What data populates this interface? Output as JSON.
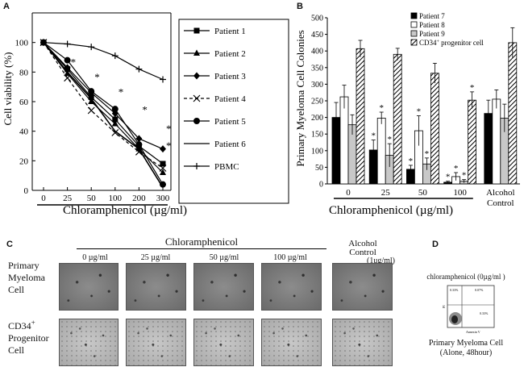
{
  "panel_labels": {
    "a": "A",
    "b": "B",
    "c": "C",
    "d": "D"
  },
  "chart_data": [
    {
      "type": "line",
      "title": "",
      "xlabel": "Chloramphenicol (µg/ml)",
      "ylabel": "Cell viability (%)",
      "categories": [
        "0",
        "25",
        "50",
        "100",
        "200",
        "300"
      ],
      "ylim": [
        0,
        120
      ],
      "yticks": [
        "0",
        "20",
        "40",
        "60",
        "80",
        "100"
      ],
      "significance": "*",
      "series": [
        {
          "name": "Patient 1",
          "marker": "square",
          "values": [
            100,
            82,
            63,
            48,
            30,
            18
          ]
        },
        {
          "name": "Patient 2",
          "marker": "triangle",
          "values": [
            100,
            79,
            60,
            45,
            28,
            12
          ]
        },
        {
          "name": "Patient 3",
          "marker": "diamond",
          "values": [
            100,
            83,
            66,
            52,
            35,
            28
          ]
        },
        {
          "name": "Patient 4",
          "marker": "x",
          "values": [
            100,
            76,
            54,
            39,
            26,
            15
          ]
        },
        {
          "name": "Patient 5",
          "marker": "circle",
          "values": [
            100,
            88,
            67,
            55,
            31,
            4
          ]
        },
        {
          "name": "Patient 6",
          "marker": "none",
          "values": [
            100,
            80,
            62,
            40,
            28,
            2
          ]
        },
        {
          "name": "PBMC",
          "marker": "plus",
          "values": [
            100,
            99,
            97,
            91,
            82,
            75
          ]
        }
      ]
    },
    {
      "type": "bar",
      "xlabel": "Chloramphenicol (µg/ml)",
      "ylabel": "Primary Myeloma Cell Colonies",
      "categories": [
        "0",
        "25",
        "50",
        "100",
        "Alcohol Control"
      ],
      "ylim": [
        0,
        500
      ],
      "yticks": [
        "0",
        "50",
        "100",
        "150",
        "200",
        "250",
        "300",
        "350",
        "400",
        "450",
        "500"
      ],
      "significance": "*",
      "series": [
        {
          "name": "Patient 7",
          "fill": "black",
          "values": [
            200,
            102,
            44,
            5,
            212
          ],
          "errors": [
            45,
            30,
            12,
            3,
            40
          ]
        },
        {
          "name": "Patient 8",
          "fill": "white",
          "values": [
            262,
            198,
            160,
            22,
            255
          ],
          "errors": [
            35,
            18,
            45,
            12,
            28
          ]
        },
        {
          "name": "Patient 9",
          "fill": "gray",
          "values": [
            178,
            86,
            60,
            8,
            198
          ],
          "errors": [
            30,
            35,
            18,
            5,
            42
          ]
        },
        {
          "name": "CD34+ progenitor cell",
          "fill": "hatch",
          "values": [
            407,
            390,
            333,
            252,
            425
          ],
          "errors": [
            25,
            18,
            30,
            25,
            45
          ]
        }
      ]
    }
  ],
  "panel_c": {
    "title": "Chloramphenicol",
    "columns": [
      "0 µg/ml",
      "25 µg/ml",
      "50 µg/ml",
      "100 µg/ml"
    ],
    "alcohol_label": "Alcohol Control",
    "alcohol_dose": "(1ug/ml)",
    "row1": "Primary Myeloma Cell",
    "row2_main": "CD34",
    "row2_sup": "+",
    "row2_rest": "Progenitor Cell"
  },
  "panel_d": {
    "title": "chloramphenicol (0µg/ml )",
    "q_ul": "0.33%",
    "q_ur": "0.07%",
    "q_lr": "0.33%",
    "axis_x": "Annexin V",
    "axis_y": "PI",
    "caption1": "Primary Myeloma Cell",
    "caption2": "(Alone, 48hour)"
  }
}
